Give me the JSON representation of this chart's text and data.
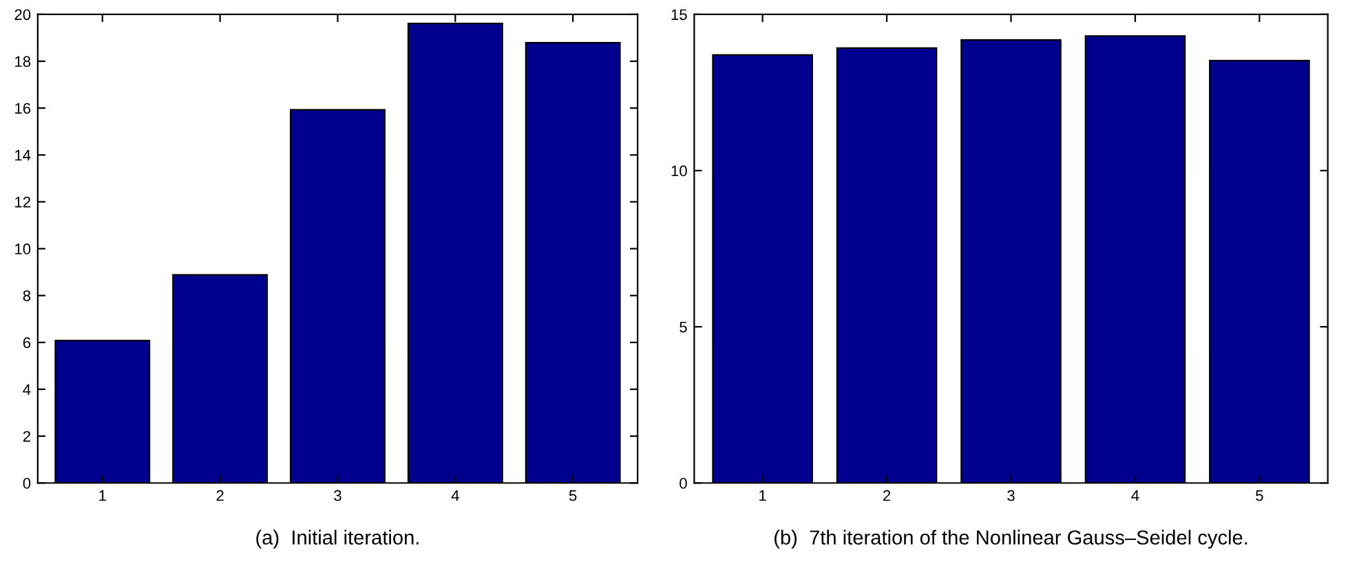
{
  "chart_data": [
    {
      "type": "bar",
      "categories": [
        "1",
        "2",
        "3",
        "4",
        "5"
      ],
      "values": [
        6.08,
        8.88,
        15.93,
        19.61,
        18.79
      ],
      "color": "#00008f",
      "ylim": [
        0,
        20
      ],
      "yticks": [
        0,
        2,
        4,
        6,
        8,
        10,
        12,
        14,
        16,
        18,
        20
      ],
      "grid": false,
      "annotations": [
        "(a)  Initial iteration."
      ]
    },
    {
      "type": "bar",
      "categories": [
        "1",
        "2",
        "3",
        "4",
        "5"
      ],
      "values": [
        13.7,
        13.92,
        14.18,
        14.31,
        13.52
      ],
      "color": "#00008f",
      "ylim": [
        0,
        15
      ],
      "yticks": [
        0,
        5,
        10,
        15
      ],
      "grid": false,
      "annotations": [
        "(b)  7th iteration of the Nonlinear Gauss–Seidel cycle."
      ]
    }
  ]
}
